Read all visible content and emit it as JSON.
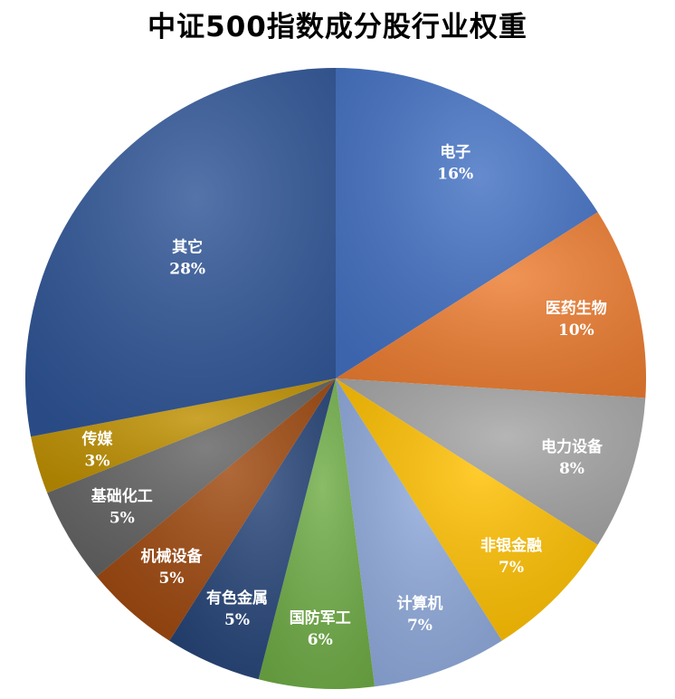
{
  "chart_data": {
    "type": "pie",
    "title": "中证500指数成分股行业权重",
    "slices": [
      {
        "label": "电子",
        "value": 16,
        "value_text": "16%",
        "color": "#4472C4"
      },
      {
        "label": "医药生物",
        "value": 10,
        "value_text": "10%",
        "color": "#ED7D31"
      },
      {
        "label": "电力设备",
        "value": 8,
        "value_text": "8%",
        "color": "#A5A5A5"
      },
      {
        "label": "非银金融",
        "value": 7,
        "value_text": "7%",
        "color": "#FFC000"
      },
      {
        "label": "计算机",
        "value": 7,
        "value_text": "7%",
        "color": "#8FAADC"
      },
      {
        "label": "国防军工",
        "value": 6,
        "value_text": "6%",
        "color": "#70AD47"
      },
      {
        "label": "有色金属",
        "value": 5,
        "value_text": "5%",
        "color": "#264478"
      },
      {
        "label": "机械设备",
        "value": 5,
        "value_text": "5%",
        "color": "#9E480E"
      },
      {
        "label": "基础化工",
        "value": 5,
        "value_text": "5%",
        "color": "#636363"
      },
      {
        "label": "传媒",
        "value": 3,
        "value_text": "3%",
        "color": "#BF9000"
      },
      {
        "label": "其它",
        "value": 28,
        "value_text": "28%",
        "color": "#2F5597"
      }
    ],
    "start": "12 o'clock",
    "direction": "clockwise",
    "legend": "none",
    "data_labels": "inside"
  }
}
